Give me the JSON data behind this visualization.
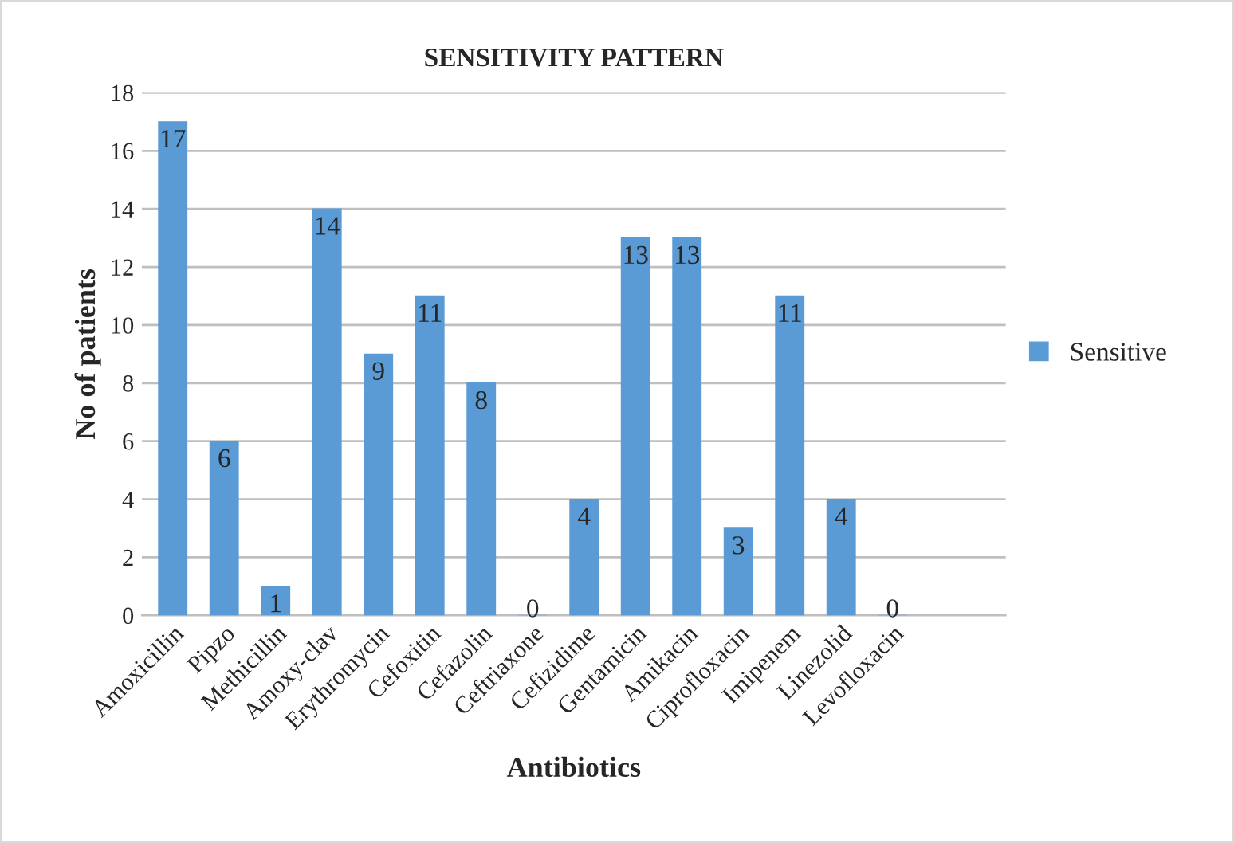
{
  "chart_data": {
    "type": "bar",
    "title": "SENSITIVITY PATTERN",
    "xlabel": "Antibiotics",
    "ylabel": "No of patients",
    "categories": [
      "Amoxicillin",
      "Pipzo",
      "Methicillin",
      "Amoxy-clav",
      "Erythromycin",
      "Cefoxitin",
      "Cefazolin",
      "Ceftriaxone",
      "Cefizidime",
      "Gentamicin",
      "Amikacin",
      "Ciprofloxacin",
      "Imipenem",
      "Linezolid",
      "Levofloxacin"
    ],
    "series": [
      {
        "name": "Sensitive",
        "color": "#5b9bd5",
        "values": [
          17,
          6,
          1,
          14,
          9,
          11,
          8,
          0,
          4,
          13,
          13,
          3,
          11,
          4,
          0
        ]
      }
    ],
    "ylim": [
      0,
      18
    ],
    "yticks": [
      0,
      2,
      4,
      6,
      8,
      10,
      12,
      14,
      16,
      18
    ],
    "grid": "y",
    "legend": "right",
    "data_labels": true
  }
}
